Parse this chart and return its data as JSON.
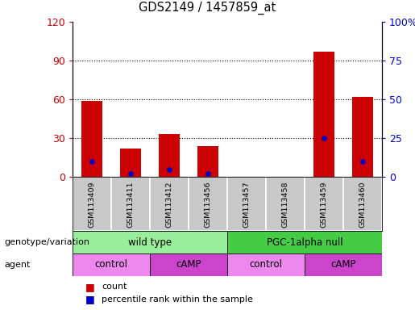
{
  "title": "GDS2149 / 1457859_at",
  "samples": [
    "GSM113409",
    "GSM113411",
    "GSM113412",
    "GSM113456",
    "GSM113457",
    "GSM113458",
    "GSM113459",
    "GSM113460"
  ],
  "count_values": [
    59,
    22,
    33,
    24,
    0,
    0,
    97,
    62
  ],
  "percentile_values": [
    10,
    2,
    5,
    2,
    0,
    0,
    25,
    10
  ],
  "ylim_left": [
    0,
    120
  ],
  "ylim_right": [
    0,
    100
  ],
  "yticks_left": [
    0,
    30,
    60,
    90,
    120
  ],
  "yticks_right": [
    0,
    25,
    50,
    75,
    100
  ],
  "yticklabels_left": [
    "0",
    "30",
    "60",
    "90",
    "120"
  ],
  "yticklabels_right": [
    "0",
    "25",
    "50",
    "75",
    "100%"
  ],
  "bar_color": "#cc0000",
  "dot_color": "#0000cc",
  "genotype_groups": [
    {
      "label": "wild type",
      "start": 0,
      "end": 4,
      "color": "#99ee99"
    },
    {
      "label": "PGC-1alpha null",
      "start": 4,
      "end": 8,
      "color": "#44cc44"
    }
  ],
  "agent_groups": [
    {
      "label": "control",
      "start": 0,
      "end": 2,
      "color": "#ee88ee"
    },
    {
      "label": "cAMP",
      "start": 2,
      "end": 4,
      "color": "#cc44cc"
    },
    {
      "label": "control",
      "start": 4,
      "end": 6,
      "color": "#ee88ee"
    },
    {
      "label": "cAMP",
      "start": 6,
      "end": 8,
      "color": "#cc44cc"
    }
  ],
  "genotype_label": "genotype/variation",
  "agent_label": "agent",
  "legend_count_label": "count",
  "legend_percentile_label": "percentile rank within the sample",
  "background_color": "#ffffff",
  "plot_bg_color": "#ffffff",
  "tick_area_color": "#c8c8c8",
  "grid_dotted_vals": [
    30,
    60,
    90
  ]
}
